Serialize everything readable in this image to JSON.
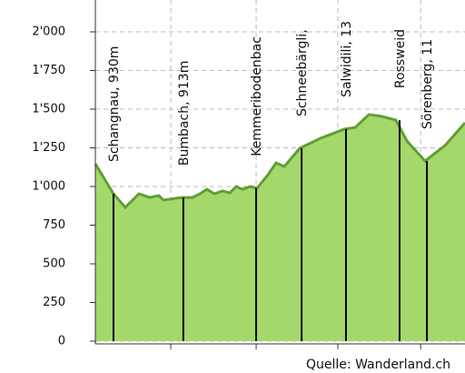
{
  "chart_data": {
    "type": "area",
    "x": [
      0,
      4.9,
      8.1,
      11.8,
      14.7,
      17.2,
      18.4,
      23.3,
      26.3,
      28.3,
      30.2,
      32.2,
      34.4,
      36.4,
      38.1,
      39.8,
      42.0,
      43.7,
      46.7,
      48.9,
      51.1,
      55.3,
      60.9,
      67.3,
      70.3,
      74.0,
      77.6,
      81.3,
      84.3,
      89.2,
      94.6,
      100
    ],
    "values": [
      1147,
      953,
      865,
      953,
      929,
      941,
      912,
      929,
      929,
      953,
      982,
      953,
      971,
      959,
      1000,
      982,
      1000,
      988,
      1076,
      1153,
      1129,
      1247,
      1312,
      1371,
      1382,
      1465,
      1453,
      1429,
      1294,
      1165,
      1265,
      1412
    ],
    "color": "#a5d86b",
    "line_color": "#5f9e35",
    "waypoints": [
      {
        "name": "Schangnau, 930m",
        "x": 4.9,
        "value": 953
      },
      {
        "name": "Bumbach, 913m",
        "x": 23.8,
        "value": 929
      },
      {
        "name": "Kemmeribodenbac",
        "x": 43.5,
        "value": 990
      },
      {
        "name": "Schneebärgli,",
        "x": 55.8,
        "value": 1247
      },
      {
        "name": "Salwidili, 13",
        "x": 67.8,
        "value": 1371
      },
      {
        "name": "Rossweid",
        "x": 82.3,
        "value": 1429
      },
      {
        "name": "Sörenberg, 11",
        "x": 89.7,
        "value": 1165
      }
    ],
    "xlim": [
      0,
      100
    ],
    "xticks": [
      20.4,
      43.5,
      65.6,
      88.0
    ],
    "ylim": [
      0,
      2000
    ],
    "yticks": [
      0,
      250,
      500,
      750,
      {
        "value": 1000,
        "label": "1'000"
      },
      {
        "value": 1250,
        "label": "1'250"
      },
      {
        "value": 1500,
        "label": "1'500"
      },
      {
        "value": 1750,
        "label": "1'750"
      },
      {
        "value": 2000,
        "label": "2'000"
      }
    ],
    "grid": true,
    "source": "Quelle: Wanderland.ch"
  }
}
